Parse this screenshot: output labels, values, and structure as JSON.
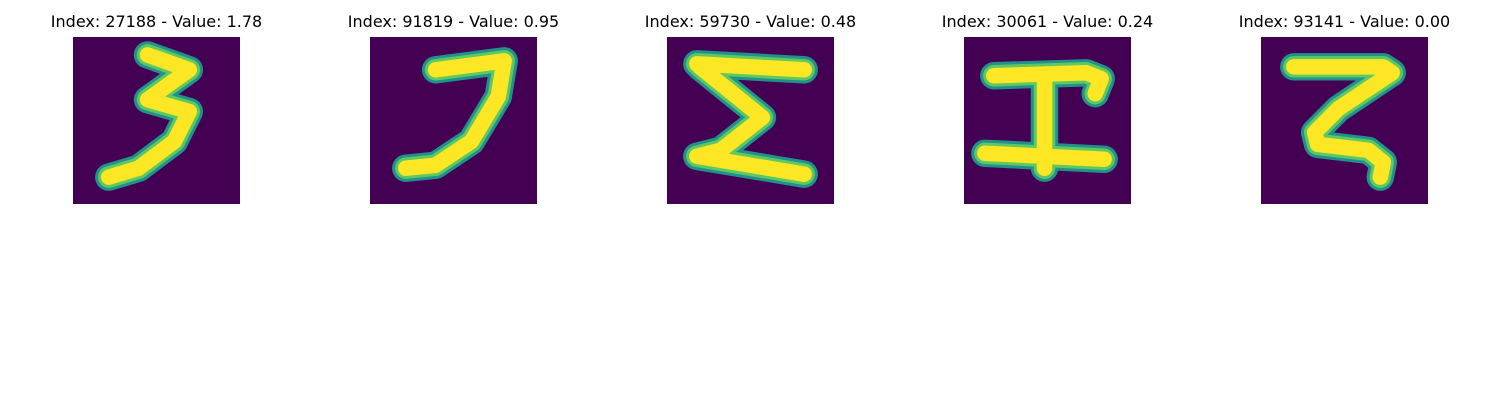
{
  "colors": {
    "background": "#440154",
    "stroke_inner": "#fde725",
    "stroke_mid": "#5ec962",
    "stroke_outer": "#21918c"
  },
  "panels": [
    {
      "title": "Index: 27188 - Value: 1.78",
      "glyph": "digit-three"
    },
    {
      "title": "Index: 91819 - Value: 0.95",
      "glyph": "digit-seven"
    },
    {
      "title": "Index: 59730 - Value: 0.48",
      "glyph": "sigma-shape"
    },
    {
      "title": "Index: 30061 - Value: 0.24",
      "glyph": "i-beam-shape"
    },
    {
      "title": "Index: 93141 - Value: 0.00",
      "glyph": "z-shape"
    }
  ]
}
